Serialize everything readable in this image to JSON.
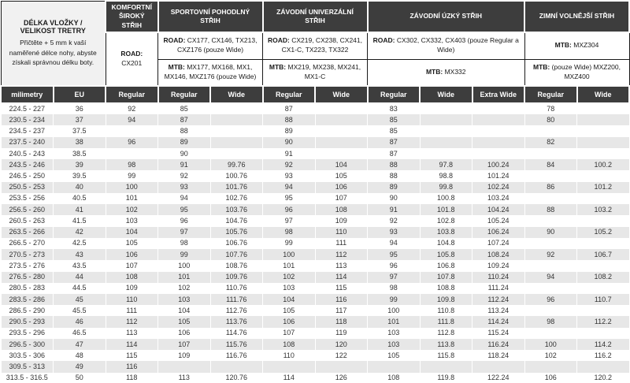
{
  "table": {
    "info_block": {
      "title": "DÉLKA VLOŽKY / VELIKOST TRETRY",
      "description": "Přičtěte + 5 mm k vaší naměřené délce nohy, abyste získali správnou délku boty."
    },
    "groups": [
      {
        "title": "KOMFORTNÍ ŠIROKÝ STŘIH",
        "row1": {
          "prefix": "ROAD:",
          "models": " CX201"
        }
      },
      {
        "title": "SPORTOVNÍ POHODLNÝ STŘIH",
        "row1": {
          "prefix": "ROAD:",
          "models": " CX177, CX146, TX213, CXZ176 (pouze Wide)"
        },
        "row2": {
          "prefix": "MTB:",
          "models": " MX177, MX168, MX1, MX146, MXZ176 (pouze Wide)"
        }
      },
      {
        "title": "ZÁVODNÍ UNIVERZÁLNÍ STŘIH",
        "row1": {
          "prefix": "ROAD:",
          "models": " CX219, CX238, CX241, CX1-C, TX223, TX322"
        },
        "row2": {
          "prefix": "MTB:",
          "models": " MX219, MX238, MX241, MX1-C"
        }
      },
      {
        "title": "ZÁVODNÍ ÚZKÝ STŘIH",
        "row1": {
          "prefix": "ROAD:",
          "models": " CX302, CX332, CX403 (pouze Regular a Wide)"
        },
        "row2": {
          "prefix": "MTB:",
          "models": " MX332"
        }
      },
      {
        "title": "ZIMNÍ VOLNĚJŠÍ STŘIH",
        "row1": {
          "prefix": "MTB:",
          "models": " MXZ304"
        },
        "row2": {
          "prefix": "MTB:",
          "models": " (pouze Wide) MXZ200, MXZ400"
        }
      }
    ],
    "subheaders": [
      "milimetry",
      "EU",
      "Regular",
      "Regular",
      "Wide",
      "Regular",
      "Wide",
      "Regular",
      "Wide",
      "Extra Wide",
      "Regular",
      "Wide"
    ],
    "rows": [
      [
        "224.5 - 227",
        "36",
        "92",
        "85",
        "",
        "87",
        "",
        "83",
        "",
        "",
        "78",
        ""
      ],
      [
        "230.5 - 234",
        "37",
        "94",
        "87",
        "",
        "88",
        "",
        "85",
        "",
        "",
        "80",
        ""
      ],
      [
        "234.5 - 237",
        "37.5",
        "",
        "88",
        "",
        "89",
        "",
        "85",
        "",
        "",
        "",
        ""
      ],
      [
        "237.5 - 240",
        "38",
        "96",
        "89",
        "",
        "90",
        "",
        "87",
        "",
        "",
        "82",
        ""
      ],
      [
        "240.5 - 243",
        "38.5",
        "",
        "90",
        "",
        "91",
        "",
        "87",
        "",
        "",
        "",
        ""
      ],
      [
        "243.5 - 246",
        "39",
        "98",
        "91",
        "99.76",
        "92",
        "104",
        "88",
        "97.8",
        "100.24",
        "84",
        "100.2"
      ],
      [
        "246.5 - 250",
        "39.5",
        "99",
        "92",
        "100.76",
        "93",
        "105",
        "88",
        "98.8",
        "101.24",
        "",
        ""
      ],
      [
        "250.5 - 253",
        "40",
        "100",
        "93",
        "101.76",
        "94",
        "106",
        "89",
        "99.8",
        "102.24",
        "86",
        "101.2"
      ],
      [
        "253.5 - 256",
        "40.5",
        "101",
        "94",
        "102.76",
        "95",
        "107",
        "90",
        "100.8",
        "103.24",
        "",
        ""
      ],
      [
        "256.5 - 260",
        "41",
        "102",
        "95",
        "103.76",
        "96",
        "108",
        "91",
        "101.8",
        "104.24",
        "88",
        "103.2"
      ],
      [
        "260.5 - 263",
        "41.5",
        "103",
        "96",
        "104.76",
        "97",
        "109",
        "92",
        "102.8",
        "105.24",
        "",
        ""
      ],
      [
        "263.5 - 266",
        "42",
        "104",
        "97",
        "105.76",
        "98",
        "110",
        "93",
        "103.8",
        "106.24",
        "90",
        "105.2"
      ],
      [
        "266.5 - 270",
        "42.5",
        "105",
        "98",
        "106.76",
        "99",
        "111",
        "94",
        "104.8",
        "107.24",
        "",
        ""
      ],
      [
        "270.5 - 273",
        "43",
        "106",
        "99",
        "107.76",
        "100",
        "112",
        "95",
        "105.8",
        "108.24",
        "92",
        "106.7"
      ],
      [
        "273.5 - 276",
        "43.5",
        "107",
        "100",
        "108.76",
        "101",
        "113",
        "96",
        "106.8",
        "109.24",
        "",
        ""
      ],
      [
        "276.5 - 280",
        "44",
        "108",
        "101",
        "109.76",
        "102",
        "114",
        "97",
        "107.8",
        "110.24",
        "94",
        "108.2"
      ],
      [
        "280.5 - 283",
        "44.5",
        "109",
        "102",
        "110.76",
        "103",
        "115",
        "98",
        "108.8",
        "111.24",
        "",
        ""
      ],
      [
        "283.5 - 286",
        "45",
        "110",
        "103",
        "111.76",
        "104",
        "116",
        "99",
        "109.8",
        "112.24",
        "96",
        "110.7"
      ],
      [
        "286.5 - 290",
        "45.5",
        "111",
        "104",
        "112.76",
        "105",
        "117",
        "100",
        "110.8",
        "113.24",
        "",
        ""
      ],
      [
        "290.5 - 293",
        "46",
        "112",
        "105",
        "113.76",
        "106",
        "118",
        "101",
        "111.8",
        "114.24",
        "98",
        "112.2"
      ],
      [
        "293.5 - 296",
        "46.5",
        "113",
        "106",
        "114.76",
        "107",
        "119",
        "103",
        "112.8",
        "115.24",
        "",
        ""
      ],
      [
        "296.5 - 300",
        "47",
        "114",
        "107",
        "115.76",
        "108",
        "120",
        "103",
        "113.8",
        "116.24",
        "100",
        "114.2"
      ],
      [
        "303.5 - 306",
        "48",
        "115",
        "109",
        "116.76",
        "110",
        "122",
        "105",
        "115.8",
        "118.24",
        "102",
        "116.2"
      ],
      [
        "309.5 - 313",
        "49",
        "116",
        "",
        "",
        "",
        "",
        "",
        "",
        "",
        "",
        ""
      ],
      [
        "313.5 - 316.5",
        "50",
        "118",
        "113",
        "120.76",
        "114",
        "126",
        "108",
        "119.8",
        "122.24",
        "106",
        "120.2"
      ]
    ]
  },
  "colors": {
    "header_bg": "#3d3d3d",
    "header_text": "#ffffff",
    "stripe": "#e7e7e7",
    "info_bg": "#f1f1f1"
  }
}
